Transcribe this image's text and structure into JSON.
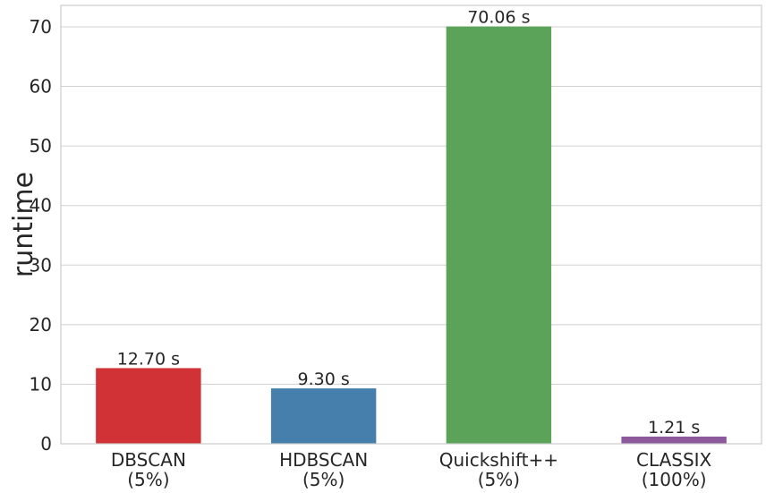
{
  "chart_data": {
    "type": "bar",
    "title": "",
    "xlabel": "",
    "ylabel": "runtime",
    "categories": [
      [
        "DBSCAN",
        "(5%)"
      ],
      [
        "HDBSCAN",
        "(5%)"
      ],
      [
        "Quickshift++",
        "(5%)"
      ],
      [
        "CLASSIX",
        "(100%)"
      ]
    ],
    "values": [
      12.7,
      9.3,
      70.06,
      1.21
    ],
    "value_labels": [
      "12.70 s",
      "9.30 s",
      "70.06 s",
      "1.21 s"
    ],
    "colors": [
      "#d03235",
      "#467fab",
      "#5aa358",
      "#8c5a9c"
    ],
    "ylim": [
      0,
      73.6
    ],
    "yticks": [
      0,
      10,
      20,
      30,
      40,
      50,
      60,
      70
    ],
    "grid": true,
    "legend": "none"
  }
}
